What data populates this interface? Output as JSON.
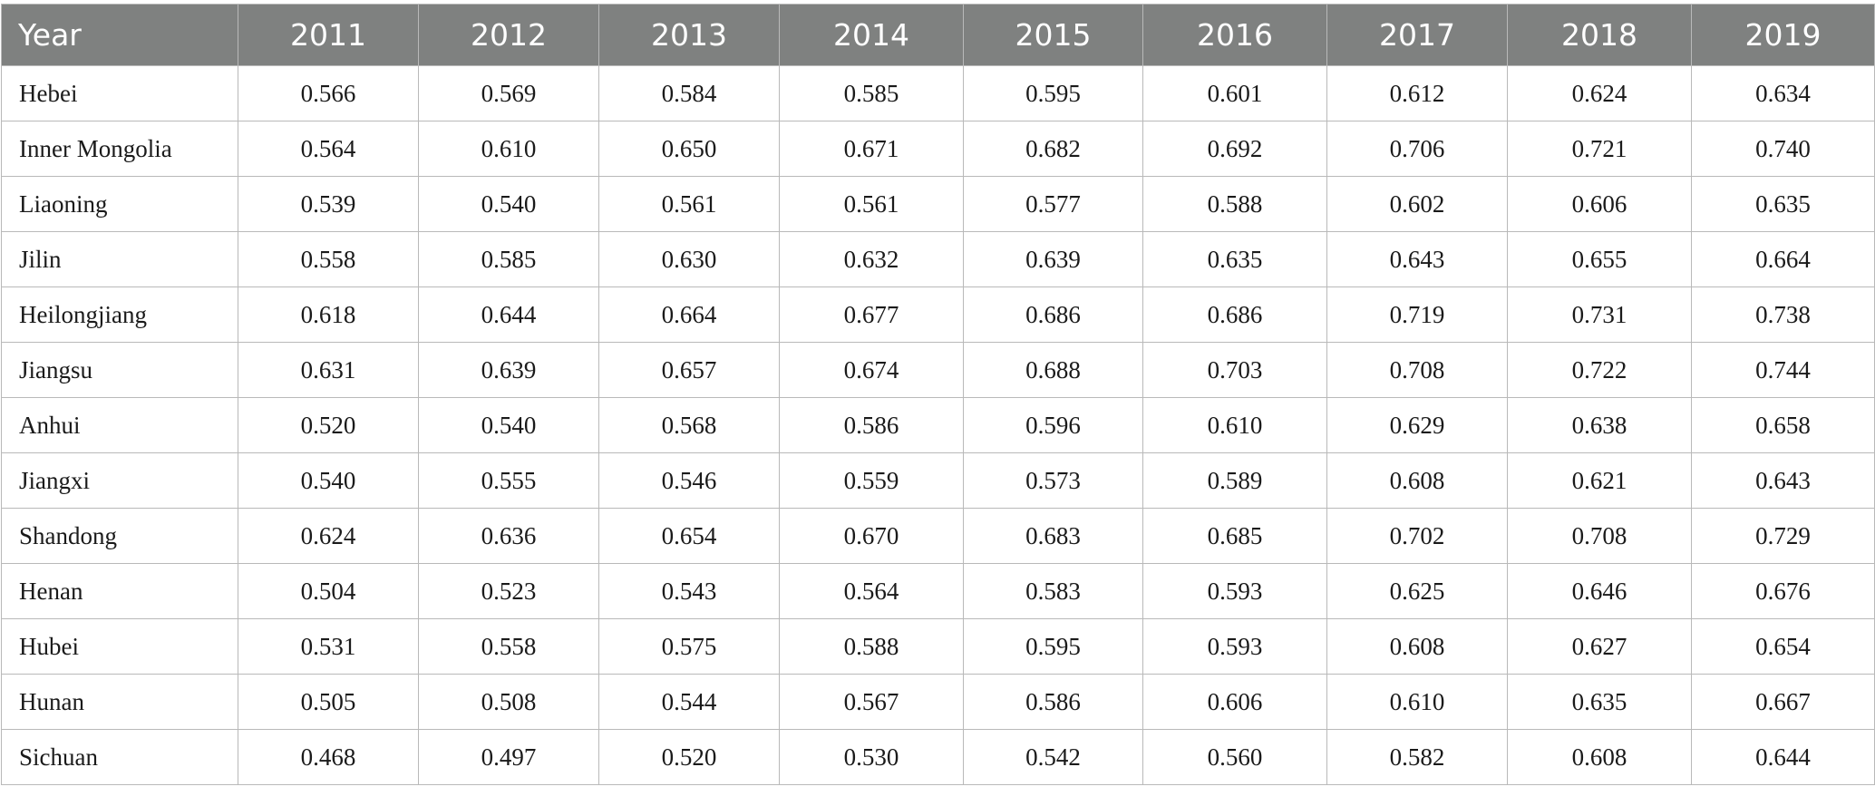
{
  "table": {
    "header": [
      "Year",
      "2011",
      "2012",
      "2013",
      "2014",
      "2015",
      "2016",
      "2017",
      "2018",
      "2019"
    ],
    "rows": [
      {
        "label": "Hebei",
        "values": [
          "0.566",
          "0.569",
          "0.584",
          "0.585",
          "0.595",
          "0.601",
          "0.612",
          "0.624",
          "0.634"
        ]
      },
      {
        "label": "Inner Mongolia",
        "values": [
          "0.564",
          "0.610",
          "0.650",
          "0.671",
          "0.682",
          "0.692",
          "0.706",
          "0.721",
          "0.740"
        ]
      },
      {
        "label": "Liaoning",
        "values": [
          "0.539",
          "0.540",
          "0.561",
          "0.561",
          "0.577",
          "0.588",
          "0.602",
          "0.606",
          "0.635"
        ]
      },
      {
        "label": "Jilin",
        "values": [
          "0.558",
          "0.585",
          "0.630",
          "0.632",
          "0.639",
          "0.635",
          "0.643",
          "0.655",
          "0.664"
        ]
      },
      {
        "label": "Heilongjiang",
        "values": [
          "0.618",
          "0.644",
          "0.664",
          "0.677",
          "0.686",
          "0.686",
          "0.719",
          "0.731",
          "0.738"
        ]
      },
      {
        "label": "Jiangsu",
        "values": [
          "0.631",
          "0.639",
          "0.657",
          "0.674",
          "0.688",
          "0.703",
          "0.708",
          "0.722",
          "0.744"
        ]
      },
      {
        "label": "Anhui",
        "values": [
          "0.520",
          "0.540",
          "0.568",
          "0.586",
          "0.596",
          "0.610",
          "0.629",
          "0.638",
          "0.658"
        ]
      },
      {
        "label": "Jiangxi",
        "values": [
          "0.540",
          "0.555",
          "0.546",
          "0.559",
          "0.573",
          "0.589",
          "0.608",
          "0.621",
          "0.643"
        ]
      },
      {
        "label": "Shandong",
        "values": [
          "0.624",
          "0.636",
          "0.654",
          "0.670",
          "0.683",
          "0.685",
          "0.702",
          "0.708",
          "0.729"
        ]
      },
      {
        "label": "Henan",
        "values": [
          "0.504",
          "0.523",
          "0.543",
          "0.564",
          "0.583",
          "0.593",
          "0.625",
          "0.646",
          "0.676"
        ]
      },
      {
        "label": "Hubei",
        "values": [
          "0.531",
          "0.558",
          "0.575",
          "0.588",
          "0.595",
          "0.593",
          "0.608",
          "0.627",
          "0.654"
        ]
      },
      {
        "label": "Hunan",
        "values": [
          "0.505",
          "0.508",
          "0.544",
          "0.567",
          "0.586",
          "0.606",
          "0.610",
          "0.635",
          "0.667"
        ]
      },
      {
        "label": "Sichuan",
        "values": [
          "0.468",
          "0.497",
          "0.520",
          "0.530",
          "0.542",
          "0.560",
          "0.582",
          "0.608",
          "0.644"
        ]
      }
    ]
  }
}
